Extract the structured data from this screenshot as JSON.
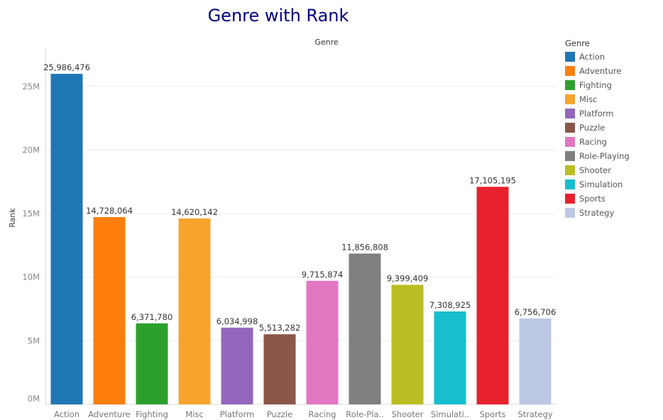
{
  "chart_data": {
    "type": "bar",
    "title": "Genre with Rank",
    "column_header": "Genre",
    "ylabel": "Rank",
    "ylim": [
      0,
      28000000
    ],
    "yticks": [
      0,
      5000000,
      10000000,
      15000000,
      20000000,
      25000000
    ],
    "ytick_labels": [
      "0M",
      "5M",
      "10M",
      "15M",
      "20M",
      "25M"
    ],
    "grid": true,
    "categories": [
      "Action",
      "Adventure",
      "Fighting",
      "Misc",
      "Platform",
      "Puzzle",
      "Racing",
      "Role-Playing",
      "Shooter",
      "Simulation",
      "Sports",
      "Strategy"
    ],
    "category_axis_labels": [
      "Action",
      "Adventure",
      "Fighting",
      "Misc",
      "Platform",
      "Puzzle",
      "Racing",
      "Role-Pla..",
      "Shooter",
      "Simulati..",
      "Sports",
      "Strategy"
    ],
    "values": [
      25986476,
      14728064,
      6371780,
      14620142,
      6034998,
      5513282,
      9715874,
      11856808,
      9399409,
      7308925,
      17105195,
      6756706
    ],
    "data_labels": [
      "25,986,476",
      "14,728,064",
      "6,371,780",
      "14,620,142",
      "6,034,998",
      "5,513,282",
      "9,715,874",
      "11,856,808",
      "9,399,409",
      "7,308,925",
      "17,105,195",
      "6,756,706"
    ],
    "colors": [
      "#1f77b4",
      "#ff7f0e",
      "#2ca02c",
      "#f7a42d",
      "#9467bd",
      "#8c564b",
      "#e377c2",
      "#7f7f7f",
      "#bcbd22",
      "#17becf",
      "#e8212e",
      "#bcc8e4"
    ],
    "legend": {
      "title": "Genre",
      "placement": "right",
      "entries": [
        "Action",
        "Adventure",
        "Fighting",
        "Misc",
        "Platform",
        "Puzzle",
        "Racing",
        "Role-Playing",
        "Shooter",
        "Simulation",
        "Sports",
        "Strategy"
      ]
    }
  }
}
